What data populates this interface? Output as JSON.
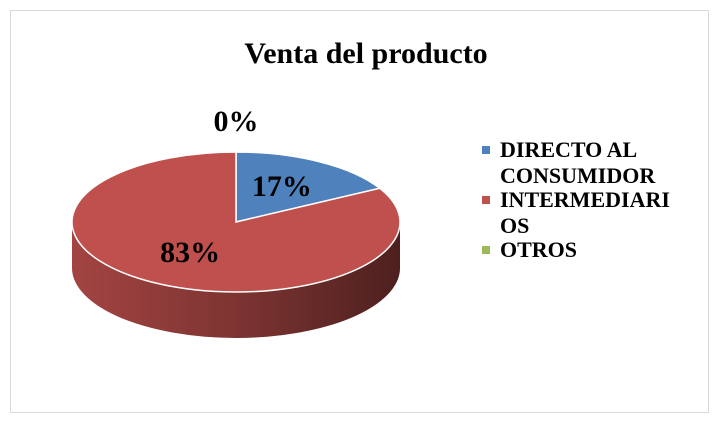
{
  "chart_data": {
    "type": "pie",
    "title": "Venta del producto",
    "categories": [
      "DIRECTO AL CONSUMIDOR",
      "INTERMEDIARIOS",
      "OTROS"
    ],
    "values": [
      17,
      83,
      0
    ],
    "value_labels": [
      "17%",
      "83%",
      "0%"
    ],
    "colors": [
      "#4f81bd",
      "#c0504d",
      "#9bbb59"
    ],
    "legend": "right"
  }
}
